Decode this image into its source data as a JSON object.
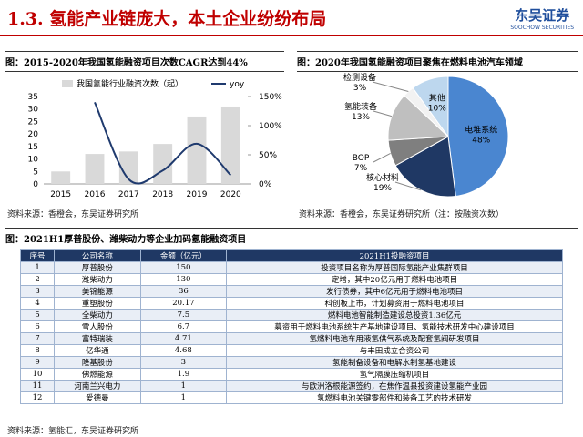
{
  "header": {
    "title": "1.3. 氢能产业链庞大，本土企业纷纷布局",
    "logo": "东吴证券",
    "logo_sub": "SOOCHOW SECURITIES"
  },
  "chart_data": [
    {
      "type": "bar",
      "title": "图：2015-2020年我国氢能融资项目次数CAGR达到44%",
      "categories": [
        "2015",
        "2016",
        "2017",
        "2018",
        "2019",
        "2020"
      ],
      "series": [
        {
          "name": "我国氢能行业融资次数（起）",
          "color": "#d9d9d9",
          "values": [
            5,
            12,
            13,
            16,
            27,
            31
          ]
        },
        {
          "name": "yoy",
          "type": "line",
          "axis": "y2",
          "color": "#1f3a6e",
          "values": [
            null,
            140,
            8,
            23,
            69,
            15
          ]
        }
      ],
      "ylim": [
        0,
        35
      ],
      "yticks": [
        0,
        5,
        10,
        15,
        20,
        25,
        30,
        35
      ],
      "y2lim": [
        0,
        150
      ],
      "y2ticks": [
        {
          "value": 0,
          "label": "0%"
        },
        {
          "value": 50,
          "label": "50%"
        },
        {
          "value": 100,
          "label": "100%"
        },
        {
          "value": 150,
          "label": "150%"
        }
      ],
      "source": "资料来源：香橙会，东吴证券研究所"
    },
    {
      "type": "pie",
      "title": "图：2020年我国氢能融资项目聚焦在燃料电池汽车领域",
      "categories": [
        "电堆系统",
        "核心材料",
        "BOP",
        "氢能装备",
        "检测设备",
        "其他"
      ],
      "values": [
        48,
        19,
        7,
        13,
        3,
        10
      ],
      "value_labels": [
        "48%",
        "19%",
        "7%",
        "13%",
        "3%",
        "10%"
      ],
      "colors": [
        "#4a86d0",
        "#1f3864",
        "#7f7f7f",
        "#bfbfbf",
        "#f2f2f2",
        "#bdd7ee"
      ],
      "source": "资料来源：香橙会，东吴证券研究所（注：按融资次数）"
    }
  ],
  "table": {
    "title": "图：2021H1厚普股份、潍柴动力等企业加码氢能融资项目",
    "headers": [
      "序号",
      "公司名称",
      "金额（亿元）",
      "2021H1投融资项目"
    ],
    "rows": [
      [
        "1",
        "厚普股份",
        "150",
        "投资项目名称为厚普国际氢能产业集群项目"
      ],
      [
        "2",
        "潍柴动力",
        "130",
        "定增，其中20亿元用于燃料电池项目"
      ],
      [
        "3",
        "美锦能源",
        "36",
        "发行债券，其中6亿元用于燃料电池项目"
      ],
      [
        "4",
        "重塑股份",
        "20.17",
        "科创板上市，计划募资用于燃料电池项目"
      ],
      [
        "5",
        "全柴动力",
        "7.5",
        "燃料电池智能制造建设总投资1.36亿元"
      ],
      [
        "6",
        "雪人股份",
        "6.7",
        "募资用于燃料电池系统生产基地建设项目、氢能技术研发中心建设项目"
      ],
      [
        "7",
        "富特瑞装",
        "4.71",
        "氢燃料电池车用液氢供气系统及配套氢阀研发项目"
      ],
      [
        "8",
        "亿华通",
        "4.68",
        "与丰田成立合资公司"
      ],
      [
        "9",
        "隆基股份",
        "3",
        "氢能制备设备和电解水制氢基地建设"
      ],
      [
        "10",
        "佛燃能源",
        "1.9",
        "氢气隔膜压缩机项目"
      ],
      [
        "11",
        "河南兰兴电力",
        "1",
        "与欧洲洛根能源签约，在焦作温县投资建设氢能产业园"
      ],
      [
        "12",
        "爱德曼",
        "1",
        "氢燃料电池关键零部件和装备工艺的技术研发"
      ]
    ],
    "source": "资料来源：氢能汇，东吴证券研究所"
  }
}
